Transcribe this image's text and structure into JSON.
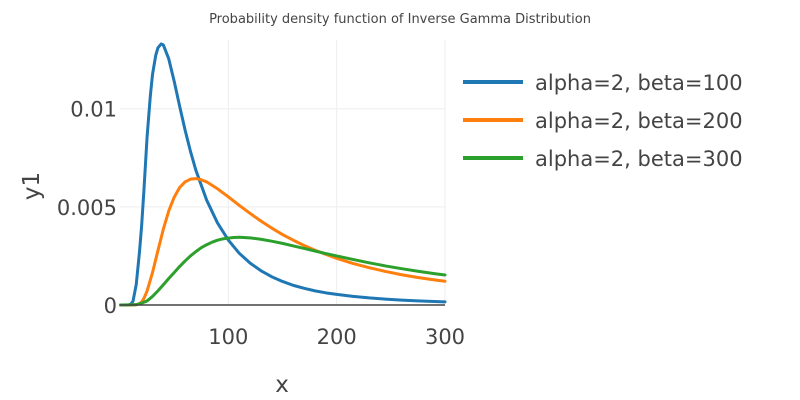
{
  "chart_data": {
    "type": "line",
    "title": "Probability density function of Inverse Gamma Distribution",
    "xlabel": "x",
    "ylabel": "y1",
    "xlim": [
      0,
      300
    ],
    "ylim": [
      0,
      0.0135
    ],
    "x_ticks": [
      100,
      200,
      300
    ],
    "x_tick_labels": [
      "100",
      "200",
      "300"
    ],
    "y_ticks": [
      0,
      0.005,
      0.01
    ],
    "y_tick_labels": [
      "0",
      "0.005",
      "0.01"
    ],
    "grid": true,
    "legend_position": "top-right outside",
    "series": [
      {
        "name": "alpha=2, beta=100",
        "color": "#1f77b4",
        "x": [
          0.5,
          5,
          8,
          10,
          12,
          15,
          18,
          20,
          22,
          25,
          28,
          30,
          33,
          35,
          38,
          40,
          45,
          50,
          55,
          60,
          65,
          70,
          80,
          90,
          100,
          110,
          120,
          130,
          140,
          150,
          160,
          170,
          180,
          190,
          200,
          215,
          230,
          245,
          260,
          275,
          290,
          300
        ],
        "y": [
          0,
          0,
          3e-06,
          4.5e-05,
          0.00019,
          0.00105,
          0.00271,
          0.00406,
          0.00577,
          0.00856,
          0.01065,
          0.01174,
          0.01272,
          0.0131,
          0.0133,
          0.01325,
          0.01254,
          0.0114,
          0.01014,
          0.00893,
          0.00784,
          0.00687,
          0.00534,
          0.00418,
          0.00331,
          0.00264,
          0.00214,
          0.00175,
          0.00144,
          0.0012,
          0.001,
          0.00085,
          0.00072,
          0.00062,
          0.00054,
          0.00044,
          0.00036,
          0.0003,
          0.00025,
          0.00021,
          0.00018,
          0.00016
        ]
      },
      {
        "name": "alpha=2, beta=200",
        "color": "#ff7f0e",
        "x": [
          0.5,
          10,
          15,
          18,
          20,
          22,
          25,
          30,
          35,
          40,
          45,
          50,
          55,
          60,
          65,
          70,
          75,
          80,
          90,
          100,
          110,
          120,
          130,
          140,
          150,
          160,
          170,
          180,
          190,
          200,
          215,
          230,
          245,
          260,
          275,
          290,
          300
        ],
        "y": [
          0,
          4e-07,
          1.3e-05,
          7.4e-05,
          0.000151,
          0.00033,
          0.00071,
          0.00165,
          0.00277,
          0.00386,
          0.00479,
          0.00549,
          0.00598,
          0.00627,
          0.00641,
          0.00644,
          0.00638,
          0.00627,
          0.00592,
          0.00551,
          0.00508,
          0.00467,
          0.00428,
          0.00392,
          0.00359,
          0.0033,
          0.00303,
          0.00279,
          0.00258,
          0.00238,
          0.00212,
          0.0019,
          0.00171,
          0.00154,
          0.0014,
          0.00128,
          0.00121
        ]
      },
      {
        "name": "alpha=2, beta=300",
        "color": "#2ca02c",
        "x": [
          0.5,
          15,
          20,
          25,
          30,
          35,
          40,
          45,
          50,
          55,
          60,
          65,
          70,
          75,
          80,
          85,
          90,
          95,
          100,
          105,
          110,
          120,
          130,
          140,
          150,
          160,
          170,
          180,
          190,
          200,
          215,
          230,
          245,
          260,
          275,
          290,
          300
        ],
        "y": [
          0,
          1.8e-05,
          9.5e-05,
          0.000207,
          0.000435,
          0.00072,
          0.00103,
          0.00135,
          0.00165,
          0.00196,
          0.00224,
          0.0025,
          0.00272,
          0.00292,
          0.00307,
          0.0032,
          0.0033,
          0.00337,
          0.00341,
          0.00344,
          0.00345,
          0.00342,
          0.00335,
          0.00325,
          0.00314,
          0.00301,
          0.00288,
          0.00275,
          0.00262,
          0.0025,
          0.00232,
          0.00215,
          0.00199,
          0.00185,
          0.00172,
          0.0016,
          0.00153
        ]
      }
    ]
  }
}
